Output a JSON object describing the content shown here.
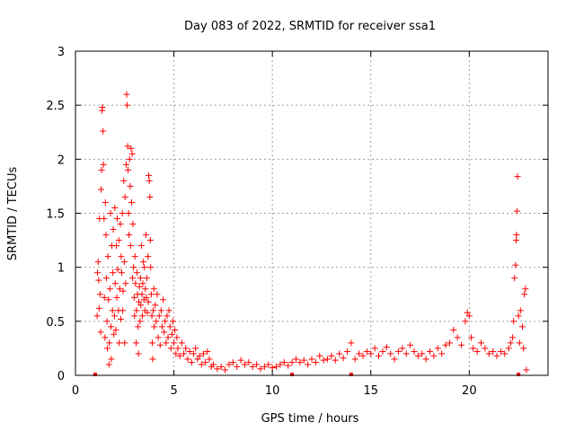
{
  "chart_data": {
    "type": "scatter",
    "title": "Day 083 of 2022, SRMTID for receiver ssa1",
    "xlabel": "GPS time / hours",
    "ylabel": "SRMTID / TECUs",
    "xlim": [
      0,
      24
    ],
    "ylim": [
      0,
      3
    ],
    "grid": true,
    "x_ticks": [
      0,
      5,
      10,
      15,
      20
    ],
    "x_tick_labels": [
      "0",
      "5",
      "10",
      "15",
      "20"
    ],
    "y_ticks": [
      0,
      0.5,
      1,
      1.5,
      2,
      2.5,
      3
    ],
    "y_tick_labels": [
      "0",
      "0.5",
      "1",
      "1.5",
      "2",
      "2.5",
      "3"
    ],
    "marker": "+",
    "color": "#ff0000",
    "baseline_markers": [
      1.0,
      11.0,
      14.0,
      22.5
    ],
    "series": [
      {
        "name": "ssa1",
        "points": [
          [
            1.1,
            0.55
          ],
          [
            1.12,
            0.95
          ],
          [
            1.15,
            1.05
          ],
          [
            1.18,
            0.88
          ],
          [
            1.2,
            0.62
          ],
          [
            1.22,
            1.45
          ],
          [
            1.25,
            0.75
          ],
          [
            1.28,
            0.4
          ],
          [
            1.3,
            1.72
          ],
          [
            1.33,
            1.9
          ],
          [
            1.35,
            2.45
          ],
          [
            1.37,
            2.48
          ],
          [
            1.4,
            2.26
          ],
          [
            1.42,
            1.95
          ],
          [
            1.45,
            1.45
          ],
          [
            1.47,
            0.72
          ],
          [
            1.5,
            0.35
          ],
          [
            1.52,
            1.6
          ],
          [
            1.55,
            1.3
          ],
          [
            1.57,
            0.9
          ],
          [
            1.6,
            0.5
          ],
          [
            1.62,
            0.25
          ],
          [
            1.65,
            1.1
          ],
          [
            1.68,
            0.7
          ],
          [
            1.7,
            0.1
          ],
          [
            1.72,
            0.3
          ],
          [
            1.75,
            0.8
          ],
          [
            1.78,
            1.5
          ],
          [
            1.8,
            0.45
          ],
          [
            1.82,
            0.15
          ],
          [
            1.85,
            1.2
          ],
          [
            1.88,
            0.6
          ],
          [
            1.9,
            0.95
          ],
          [
            1.92,
            1.35
          ],
          [
            1.95,
            0.38
          ],
          [
            1.98,
            0.55
          ],
          [
            2.0,
            1.55
          ],
          [
            2.02,
            0.85
          ],
          [
            2.05,
            0.42
          ],
          [
            2.08,
            1.2
          ],
          [
            2.1,
            0.72
          ],
          [
            2.12,
            1.45
          ],
          [
            2.15,
            0.98
          ],
          [
            2.18,
            0.6
          ],
          [
            2.2,
            1.25
          ],
          [
            2.22,
            0.3
          ],
          [
            2.25,
            0.8
          ],
          [
            2.28,
            1.4
          ],
          [
            2.3,
            0.52
          ],
          [
            2.32,
            1.1
          ],
          [
            2.35,
            0.95
          ],
          [
            2.38,
            1.5
          ],
          [
            2.4,
            0.6
          ],
          [
            2.42,
            0.78
          ],
          [
            2.45,
            1.8
          ],
          [
            2.48,
            1.05
          ],
          [
            2.5,
            0.3
          ],
          [
            2.52,
            1.65
          ],
          [
            2.55,
            0.85
          ],
          [
            2.58,
            1.95
          ],
          [
            2.6,
            2.6
          ],
          [
            2.62,
            2.5
          ],
          [
            2.65,
            2.12
          ],
          [
            2.67,
            1.9
          ],
          [
            2.7,
            1.5
          ],
          [
            2.72,
            1.3
          ],
          [
            2.75,
            2.0
          ],
          [
            2.78,
            1.75
          ],
          [
            2.8,
            1.2
          ],
          [
            2.82,
            2.1
          ],
          [
            2.85,
            1.6
          ],
          [
            2.88,
            2.05
          ],
          [
            2.9,
            0.9
          ],
          [
            2.92,
            1.4
          ],
          [
            2.95,
            1.0
          ],
          [
            2.98,
            0.72
          ],
          [
            3.0,
            0.55
          ],
          [
            3.02,
            1.1
          ],
          [
            3.05,
            0.85
          ],
          [
            3.08,
            0.3
          ],
          [
            3.1,
            0.6
          ],
          [
            3.12,
            0.95
          ],
          [
            3.15,
            0.75
          ],
          [
            3.18,
            0.45
          ],
          [
            3.2,
            0.2
          ],
          [
            3.22,
            0.68
          ],
          [
            3.25,
            0.82
          ],
          [
            3.28,
            0.5
          ],
          [
            3.3,
            0.9
          ],
          [
            3.32,
            0.65
          ],
          [
            3.35,
            1.2
          ],
          [
            3.38,
            0.75
          ],
          [
            3.4,
            0.55
          ],
          [
            3.42,
            0.85
          ],
          [
            3.45,
            1.05
          ],
          [
            3.48,
            0.7
          ],
          [
            3.5,
            1.0
          ],
          [
            3.52,
            0.6
          ],
          [
            3.55,
            0.8
          ],
          [
            3.58,
            1.3
          ],
          [
            3.6,
            0.72
          ],
          [
            3.62,
            0.9
          ],
          [
            3.65,
            0.58
          ],
          [
            3.68,
            1.1
          ],
          [
            3.7,
            0.68
          ],
          [
            3.72,
            1.85
          ],
          [
            3.75,
            1.8
          ],
          [
            3.78,
            1.65
          ],
          [
            3.8,
            1.25
          ],
          [
            3.82,
            1.0
          ],
          [
            3.85,
            0.75
          ],
          [
            3.88,
            0.55
          ],
          [
            3.9,
            0.3
          ],
          [
            3.92,
            0.15
          ],
          [
            3.95,
            0.6
          ],
          [
            3.98,
            0.8
          ],
          [
            4.0,
            0.45
          ],
          [
            4.05,
            0.65
          ],
          [
            4.1,
            0.5
          ],
          [
            4.15,
            0.75
          ],
          [
            4.2,
            0.35
          ],
          [
            4.25,
            0.55
          ],
          [
            4.3,
            0.28
          ],
          [
            4.35,
            0.6
          ],
          [
            4.4,
            0.45
          ],
          [
            4.45,
            0.7
          ],
          [
            4.5,
            0.4
          ],
          [
            4.55,
            0.5
          ],
          [
            4.6,
            0.3
          ],
          [
            4.65,
            0.55
          ],
          [
            4.7,
            0.35
          ],
          [
            4.75,
            0.6
          ],
          [
            4.8,
            0.45
          ],
          [
            4.85,
            0.25
          ],
          [
            4.9,
            0.38
          ],
          [
            4.95,
            0.5
          ],
          [
            5.0,
            0.3
          ],
          [
            5.05,
            0.42
          ],
          [
            5.1,
            0.2
          ],
          [
            5.15,
            0.35
          ],
          [
            5.2,
            0.25
          ],
          [
            5.3,
            0.18
          ],
          [
            5.4,
            0.3
          ],
          [
            5.5,
            0.2
          ],
          [
            5.6,
            0.25
          ],
          [
            5.7,
            0.15
          ],
          [
            5.8,
            0.22
          ],
          [
            5.9,
            0.12
          ],
          [
            6.0,
            0.2
          ],
          [
            6.1,
            0.25
          ],
          [
            6.2,
            0.15
          ],
          [
            6.3,
            0.18
          ],
          [
            6.4,
            0.1
          ],
          [
            6.5,
            0.2
          ],
          [
            6.6,
            0.12
          ],
          [
            6.7,
            0.22
          ],
          [
            6.8,
            0.15
          ],
          [
            6.9,
            0.08
          ],
          [
            7.0,
            0.1
          ],
          [
            7.2,
            0.06
          ],
          [
            7.4,
            0.08
          ],
          [
            7.6,
            0.05
          ],
          [
            7.8,
            0.1
          ],
          [
            8.0,
            0.12
          ],
          [
            8.2,
            0.08
          ],
          [
            8.4,
            0.14
          ],
          [
            8.6,
            0.1
          ],
          [
            8.8,
            0.12
          ],
          [
            9.0,
            0.08
          ],
          [
            9.2,
            0.1
          ],
          [
            9.4,
            0.06
          ],
          [
            9.6,
            0.08
          ],
          [
            9.8,
            0.1
          ],
          [
            10.0,
            0.07
          ],
          [
            10.2,
            0.08
          ],
          [
            10.4,
            0.1
          ],
          [
            10.6,
            0.12
          ],
          [
            10.8,
            0.09
          ],
          [
            11.0,
            0.12
          ],
          [
            11.2,
            0.15
          ],
          [
            11.4,
            0.12
          ],
          [
            11.6,
            0.14
          ],
          [
            11.8,
            0.1
          ],
          [
            12.0,
            0.15
          ],
          [
            12.2,
            0.12
          ],
          [
            12.4,
            0.18
          ],
          [
            12.6,
            0.14
          ],
          [
            12.8,
            0.15
          ],
          [
            13.0,
            0.18
          ],
          [
            13.2,
            0.14
          ],
          [
            13.4,
            0.2
          ],
          [
            13.6,
            0.16
          ],
          [
            13.8,
            0.22
          ],
          [
            14.0,
            0.3
          ],
          [
            14.2,
            0.15
          ],
          [
            14.4,
            0.2
          ],
          [
            14.6,
            0.18
          ],
          [
            14.8,
            0.22
          ],
          [
            15.0,
            0.2
          ],
          [
            15.2,
            0.25
          ],
          [
            15.4,
            0.18
          ],
          [
            15.6,
            0.22
          ],
          [
            15.8,
            0.26
          ],
          [
            16.0,
            0.2
          ],
          [
            16.2,
            0.15
          ],
          [
            16.4,
            0.22
          ],
          [
            16.6,
            0.25
          ],
          [
            16.8,
            0.2
          ],
          [
            17.0,
            0.28
          ],
          [
            17.2,
            0.22
          ],
          [
            17.4,
            0.18
          ],
          [
            17.6,
            0.2
          ],
          [
            17.8,
            0.15
          ],
          [
            18.0,
            0.22
          ],
          [
            18.2,
            0.18
          ],
          [
            18.4,
            0.25
          ],
          [
            18.6,
            0.2
          ],
          [
            18.8,
            0.28
          ],
          [
            19.0,
            0.3
          ],
          [
            19.2,
            0.42
          ],
          [
            19.4,
            0.35
          ],
          [
            19.6,
            0.28
          ],
          [
            19.8,
            0.5
          ],
          [
            19.9,
            0.58
          ],
          [
            20.0,
            0.55
          ],
          [
            20.1,
            0.35
          ],
          [
            20.2,
            0.25
          ],
          [
            20.4,
            0.22
          ],
          [
            20.6,
            0.3
          ],
          [
            20.8,
            0.25
          ],
          [
            21.0,
            0.2
          ],
          [
            21.2,
            0.22
          ],
          [
            21.4,
            0.18
          ],
          [
            21.6,
            0.22
          ],
          [
            21.8,
            0.2
          ],
          [
            22.0,
            0.25
          ],
          [
            22.1,
            0.3
          ],
          [
            22.2,
            0.35
          ],
          [
            22.25,
            0.5
          ],
          [
            22.3,
            0.9
          ],
          [
            22.35,
            1.02
          ],
          [
            22.38,
            1.25
          ],
          [
            22.4,
            1.3
          ],
          [
            22.42,
            1.52
          ],
          [
            22.45,
            1.84
          ],
          [
            22.5,
            0.55
          ],
          [
            22.55,
            0.3
          ],
          [
            22.6,
            0.6
          ],
          [
            22.7,
            0.45
          ],
          [
            22.75,
            0.25
          ],
          [
            22.8,
            0.75
          ],
          [
            22.85,
            0.8
          ],
          [
            22.9,
            0.05
          ]
        ]
      }
    ]
  }
}
